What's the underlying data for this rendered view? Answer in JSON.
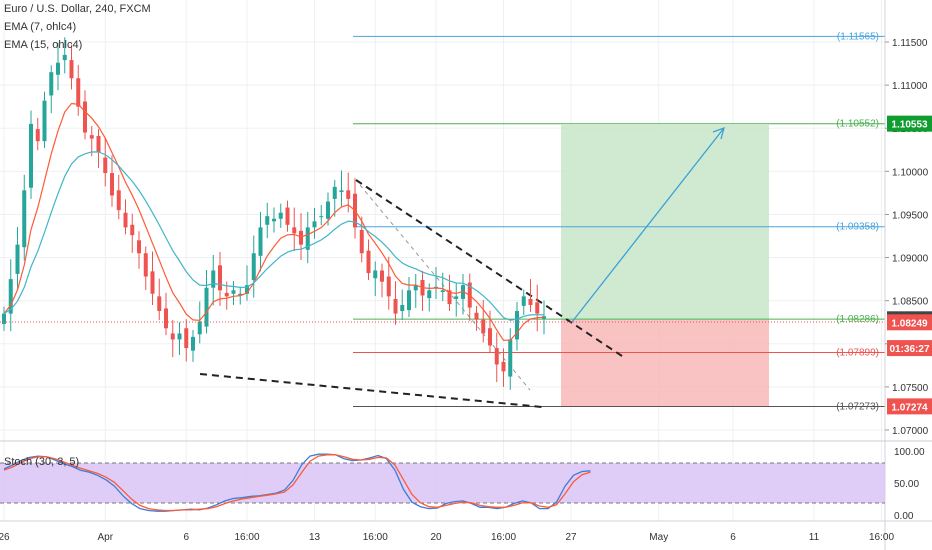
{
  "chart_data": {
    "type": "candlestick",
    "symbol_title": "Euro / U.S. Dollar, 240, FXCM",
    "indicators": [
      "EMA (7, ohlc4)",
      "EMA (15, ohlc4)"
    ],
    "oscillator": {
      "label": "Stoch (30, 3, 5)",
      "ticks": [
        "100.00",
        "50.00",
        "0.00"
      ],
      "ylim": [
        0,
        100
      ],
      "bands": [
        20,
        80
      ],
      "k": [
        72,
        78,
        85,
        90,
        92,
        91,
        86,
        80,
        76,
        70,
        67,
        62,
        55,
        45,
        30,
        18,
        10,
        7,
        6,
        6,
        7,
        8,
        9,
        8,
        11,
        16,
        22,
        26,
        27,
        29,
        30,
        32,
        34,
        39,
        54,
        78,
        92,
        95,
        95,
        94,
        88,
        85,
        86,
        89,
        93,
        88,
        70,
        40,
        20,
        13,
        10,
        11,
        18,
        21,
        22,
        18,
        12,
        12,
        10,
        12,
        18,
        22,
        19,
        10,
        10,
        20,
        45,
        62,
        68,
        69
      ],
      "d": [
        70,
        75,
        82,
        88,
        91,
        91,
        88,
        83,
        78,
        73,
        69,
        65,
        59,
        51,
        38,
        25,
        15,
        10,
        8,
        7,
        7,
        8,
        8,
        9,
        10,
        13,
        18,
        22,
        25,
        27,
        29,
        31,
        33,
        36,
        47,
        66,
        84,
        92,
        94,
        94,
        91,
        87,
        86,
        87,
        90,
        89,
        78,
        55,
        32,
        19,
        13,
        12,
        15,
        18,
        20,
        19,
        15,
        13,
        12,
        12,
        15,
        19,
        19,
        14,
        12,
        16,
        33,
        52,
        63,
        67
      ]
    },
    "price_axis": {
      "ticks": [
        "1.11500",
        "1.11000",
        "1.10500",
        "1.10000",
        "1.09500",
        "1.09000",
        "1.08500",
        "1.08000",
        "1.07500",
        "1.07000"
      ],
      "ylim": [
        1.0695,
        1.1195
      ]
    },
    "level_labels": [
      {
        "value": 1.11565,
        "text": "(1.11565)",
        "color": "#4aa3df"
      },
      {
        "value": 1.10552,
        "text": "(1.10552)",
        "color": "#4caf50"
      },
      {
        "value": 1.09358,
        "text": "(1.09358)",
        "color": "#4aa3df"
      },
      {
        "value": 1.08286,
        "text": "(1.08286)",
        "color": "#4caf50"
      },
      {
        "value": 1.07899,
        "text": "(1.07899)",
        "color": "#ef5350"
      },
      {
        "value": 1.07273,
        "text": "(1.07273)",
        "color": "#555555"
      }
    ],
    "price_badges": [
      {
        "value": 1.10553,
        "text": "1.10553",
        "bg": "#0f9d30"
      },
      {
        "value": 1.08284,
        "text": "1.08284",
        "bg": "#444444"
      },
      {
        "value": 1.08249,
        "text": "1.08249",
        "bg": "#ef5350"
      },
      {
        "value": 1.0795,
        "text": "01:36:27",
        "bg": "#ef5350"
      },
      {
        "value": 1.07274,
        "text": "1.07274",
        "bg": "#ef5350"
      }
    ],
    "x_axis": {
      "ticks": [
        "26",
        "Apr",
        "6",
        "16:00",
        "13",
        "16:00",
        "20",
        "16:00",
        "27",
        "May",
        "6",
        "11",
        "16:00"
      ],
      "bar_index": [
        0,
        15,
        27,
        36,
        46,
        55,
        64,
        74,
        84,
        97,
        108,
        120,
        130
      ]
    },
    "last_price": 1.08284,
    "close": [
      1.0835,
      1.0875,
      1.0915,
      1.0978,
      1.1055,
      1.1035,
      1.1082,
      1.1115,
      1.1126,
      1.1135,
      1.1108,
      1.1075,
      1.1045,
      1.1038,
      1.1022,
      1.0998,
      1.0972,
      1.0955,
      1.0935,
      1.0926,
      1.0905,
      1.0878,
      1.0858,
      1.0838,
      1.0818,
      1.0805,
      1.0812,
      1.0795,
      1.0808,
      1.0826,
      1.0865,
      1.0885,
      1.0862,
      1.0855,
      1.0862,
      1.0858,
      1.0868,
      1.0905,
      1.0935,
      1.0948,
      1.0945,
      1.0952,
      1.0938,
      1.0928,
      1.0915,
      1.0935,
      1.0942,
      1.0948,
      1.0965,
      1.0982,
      1.0978,
      1.0968,
      1.0935,
      1.0905,
      1.0882,
      1.0885,
      1.0872,
      1.0855,
      1.0835,
      1.0845,
      1.0862,
      1.0868,
      1.0856,
      1.0862,
      1.0866,
      1.0862,
      1.0846,
      1.0855,
      1.0868,
      1.0842,
      1.0828,
      1.0812,
      1.0798,
      1.0776,
      1.0768,
      1.0805,
      1.0838,
      1.0855,
      1.0845,
      1.0835,
      1.0832
    ]
  }
}
